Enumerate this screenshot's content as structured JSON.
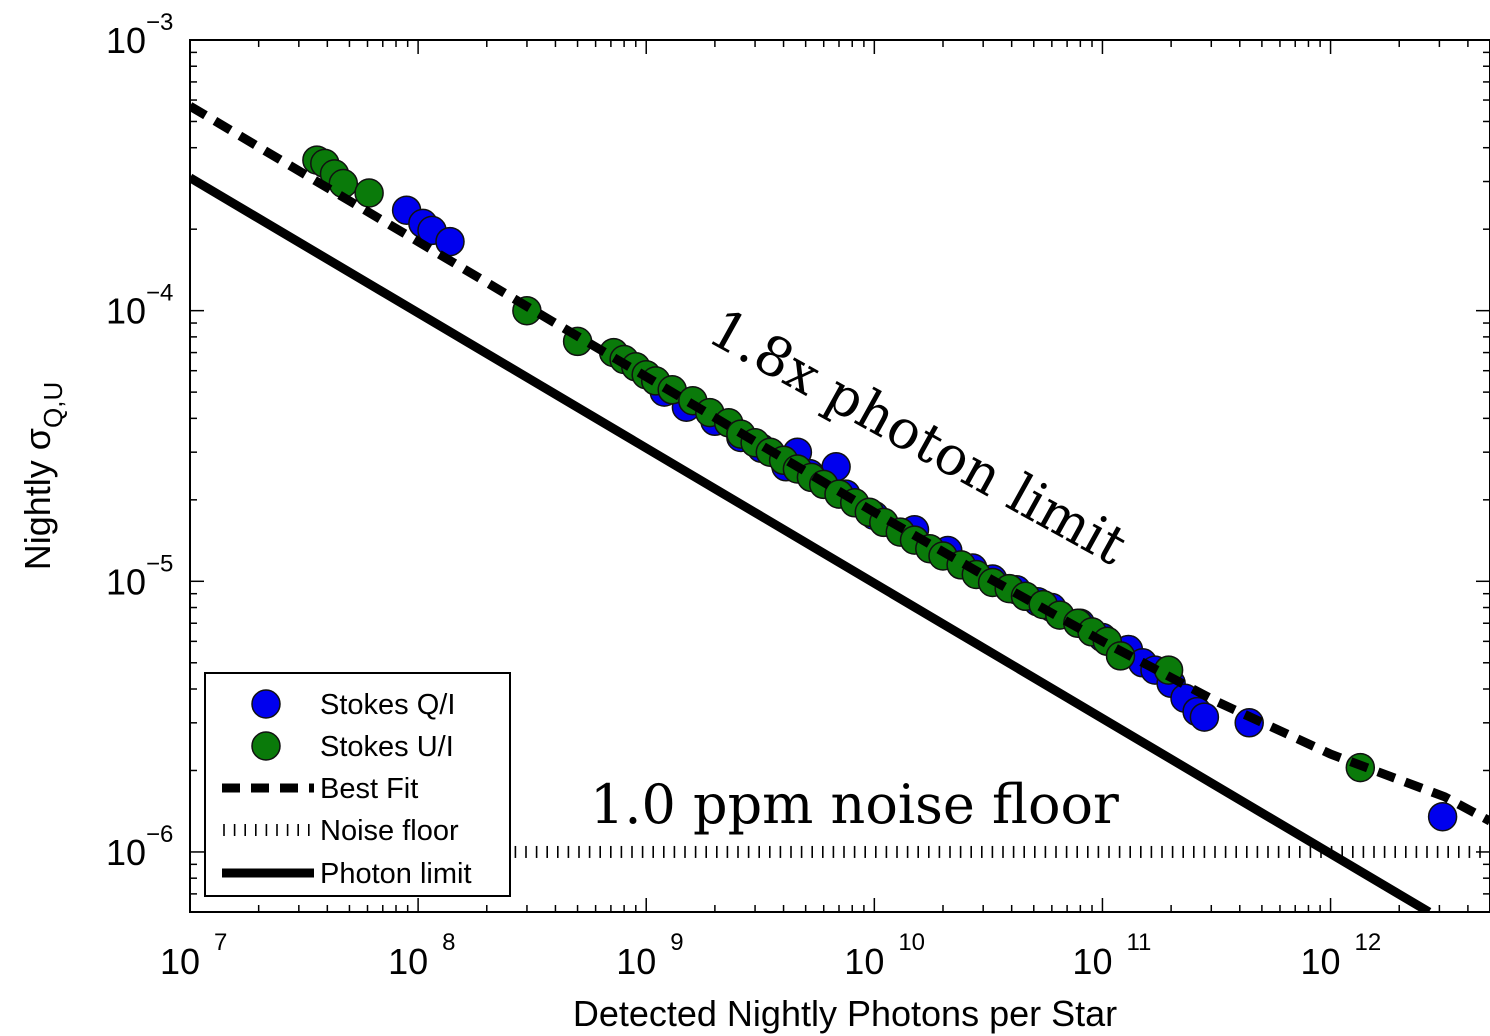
{
  "chart_data": {
    "type": "scatter",
    "xscale": "log",
    "yscale": "log",
    "xlim": [
      10000000,
      5000000000000
    ],
    "ylim": [
      6e-07,
      0.001
    ],
    "xlabel": "Detected Nightly Photons per Star",
    "ylabel": {
      "main": "Nightly σ",
      "subscript": "Q,U"
    },
    "x_ticks": [
      {
        "base": "10",
        "exp": "7",
        "value": 10000000
      },
      {
        "base": "10",
        "exp": "8",
        "value": 100000000
      },
      {
        "base": "10",
        "exp": "9",
        "value": 1000000000
      },
      {
        "base": "10",
        "exp": "10",
        "value": 10000000000
      },
      {
        "base": "10",
        "exp": "11",
        "value": 100000000000
      },
      {
        "base": "10",
        "exp": "12",
        "value": 1000000000000
      }
    ],
    "y_ticks": [
      {
        "base": "10",
        "exp": "−3",
        "value": 0.001
      },
      {
        "base": "10",
        "exp": "−4",
        "value": 0.0001
      },
      {
        "base": "10",
        "exp": "−5",
        "value": 1e-05
      },
      {
        "base": "10",
        "exp": "−6",
        "value": 1e-06
      }
    ],
    "annotations": {
      "fit_label": "1.8x photon limit",
      "floor_label": "1.0 ppm noise floor"
    },
    "legend": {
      "placement": "bottom-left",
      "entries": [
        "Stokes Q/I",
        "Stokes U/I",
        "Best Fit",
        "Noise floor",
        "Photon limit"
      ]
    },
    "series": [
      {
        "name": "Stokes Q/I",
        "color": "#0000ee",
        "kind": "markers",
        "points": [
          [
            89000000.0,
            0.000235
          ],
          [
            105000000.0,
            0.00021
          ],
          [
            115000000.0,
            0.000198
          ],
          [
            138000000.0,
            0.00018
          ],
          [
            1200000000.0,
            5e-05
          ],
          [
            1500000000.0,
            4.4e-05
          ],
          [
            2000000000.0,
            3.9e-05
          ],
          [
            2600000000.0,
            3.4e-05
          ],
          [
            3200000000.0,
            3.1e-05
          ],
          [
            4100000000.0,
            2.65e-05
          ],
          [
            4600000000.0,
            3e-05
          ],
          [
            6800000000.0,
            2.65e-05
          ],
          [
            5200000000.0,
            2.5e-05
          ],
          [
            7500000000.0,
            2.1e-05
          ],
          [
            10000000000.0,
            1.75e-05
          ],
          [
            15000000000.0,
            1.55e-05
          ],
          [
            21000000000.0,
            1.3e-05
          ],
          [
            27000000000.0,
            1.12e-05
          ],
          [
            33000000000.0,
            1.02e-05
          ],
          [
            42000000000.0,
            9.3e-06
          ],
          [
            52000000000.0,
            8.4e-06
          ],
          [
            60000000000.0,
            8e-06
          ],
          [
            80000000000.0,
            7e-06
          ],
          [
            100000000000.0,
            6.2e-06
          ],
          [
            130000000000.0,
            5.6e-06
          ],
          [
            150000000000.0,
            5e-06
          ],
          [
            170000000000.0,
            4.7e-06
          ],
          [
            200000000000.0,
            4.2e-06
          ],
          [
            230000000000.0,
            3.7e-06
          ],
          [
            260000000000.0,
            3.3e-06
          ],
          [
            280000000000.0,
            3.15e-06
          ],
          [
            440000000000.0,
            3e-06
          ],
          [
            3100000000000.0,
            1.35e-06
          ]
        ]
      },
      {
        "name": "Stokes U/I",
        "color": "#0a7a0a",
        "kind": "markers",
        "points": [
          [
            36000000.0,
            0.00036
          ],
          [
            39000000.0,
            0.00035
          ],
          [
            43000000.0,
            0.00032
          ],
          [
            47000000.0,
            0.000295
          ],
          [
            61000000.0,
            0.000272
          ],
          [
            300000000.0,
            0.0001
          ],
          [
            500000000.0,
            7.7e-05
          ],
          [
            720000000.0,
            7e-05
          ],
          [
            800000000.0,
            6.6e-05
          ],
          [
            900000000.0,
            6.2e-05
          ],
          [
            1000000000.0,
            5.8e-05
          ],
          [
            1100000000.0,
            5.5e-05
          ],
          [
            1300000000.0,
            5.1e-05
          ],
          [
            1600000000.0,
            4.65e-05
          ],
          [
            1900000000.0,
            4.2e-05
          ],
          [
            2300000000.0,
            3.85e-05
          ],
          [
            2600000000.0,
            3.5e-05
          ],
          [
            3000000000.0,
            3.25e-05
          ],
          [
            3500000000.0,
            3e-05
          ],
          [
            4000000000.0,
            2.8e-05
          ],
          [
            4600000000.0,
            2.6e-05
          ],
          [
            5300000000.0,
            2.42e-05
          ],
          [
            6000000000.0,
            2.28e-05
          ],
          [
            7000000000.0,
            2.1e-05
          ],
          [
            8200000000.0,
            1.95e-05
          ],
          [
            9500000000.0,
            1.8e-05
          ],
          [
            11000000000.0,
            1.65e-05
          ],
          [
            13000000000.0,
            1.52e-05
          ],
          [
            15000000000.0,
            1.42e-05
          ],
          [
            17500000000.0,
            1.32e-05
          ],
          [
            20000000000.0,
            1.24e-05
          ],
          [
            24000000000.0,
            1.15e-05
          ],
          [
            28000000000.0,
            1.06e-05
          ],
          [
            33000000000.0,
            9.9e-06
          ],
          [
            39000000000.0,
            9.4e-06
          ],
          [
            46000000000.0,
            8.8e-06
          ],
          [
            55000000000.0,
            8.2e-06
          ],
          [
            65000000000.0,
            7.5e-06
          ],
          [
            78000000000.0,
            7e-06
          ],
          [
            90000000000.0,
            6.5e-06
          ],
          [
            105000000000.0,
            6e-06
          ],
          [
            120000000000.0,
            5.3e-06
          ],
          [
            195000000000.0,
            4.7e-06
          ],
          [
            1350000000000.0,
            2.05e-06
          ]
        ]
      },
      {
        "name": "Best Fit",
        "color": "#000000",
        "kind": "line",
        "style": "dashed",
        "points": [
          [
            10000000.0,
            0.00057
          ],
          [
            31600000.0,
            0.00032
          ],
          [
            100000000.0,
            0.00018
          ],
          [
            316000000.0,
            0.000101
          ],
          [
            1000000000.0,
            5.7e-05
          ],
          [
            3160000000.0,
            3.2e-05
          ],
          [
            10000000000.0,
            1.8e-05
          ],
          [
            31600000000.0,
            1.03e-05
          ],
          [
            100000000000.0,
            6e-06
          ],
          [
            316000000000.0,
            3.6e-06
          ],
          [
            1000000000000.0,
            2.3e-06
          ],
          [
            3160000000000.0,
            1.6e-06
          ],
          [
            5000000000000.0,
            1.3e-06
          ]
        ]
      },
      {
        "name": "Noise floor",
        "color": "#000000",
        "kind": "line",
        "style": "vertical-hatch",
        "points": [
          [
            240000000.0,
            1e-06
          ],
          [
            5000000000000.0,
            1e-06
          ]
        ]
      },
      {
        "name": "Photon limit",
        "color": "#000000",
        "kind": "line",
        "style": "solid",
        "points": [
          [
            10000000.0,
            0.00031
          ],
          [
            2700000000000.0,
            6e-07
          ]
        ]
      }
    ]
  }
}
